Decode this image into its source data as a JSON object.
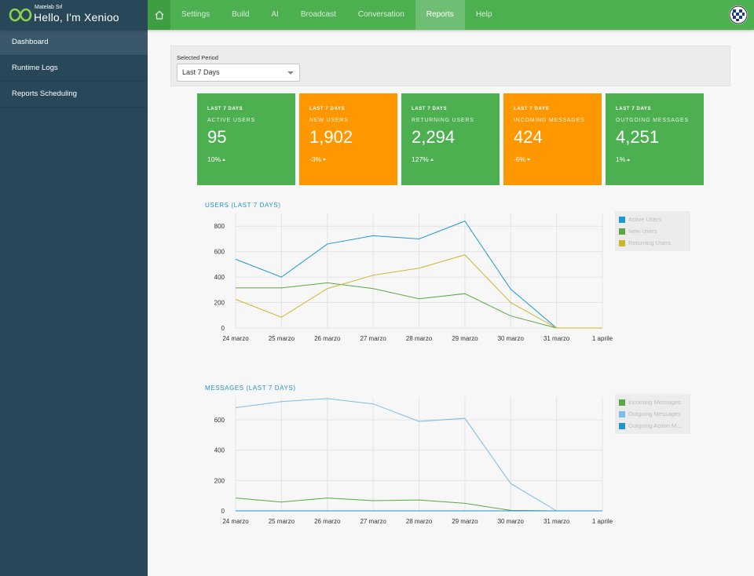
{
  "header": {
    "company": "Matelab Srl",
    "app_name": "Hello, I'm Xenioo",
    "nav": [
      {
        "label": "Settings",
        "active": false
      },
      {
        "label": "Build",
        "active": false
      },
      {
        "label": "AI",
        "active": false
      },
      {
        "label": "Broadcast",
        "active": false
      },
      {
        "label": "Conversation",
        "active": false
      },
      {
        "label": "Reports",
        "active": true
      },
      {
        "label": "Help",
        "active": false
      }
    ],
    "icons": {
      "home": "home-icon",
      "logo": "infinity-logo-icon",
      "avatar": "user-avatar"
    }
  },
  "sidebar": {
    "items": [
      {
        "label": "Dashboard",
        "active": true
      },
      {
        "label": "Runtime Logs",
        "active": false
      },
      {
        "label": "Reports Scheduling",
        "active": false
      }
    ]
  },
  "period": {
    "label": "Selected Period",
    "value": "Last 7 Days"
  },
  "kpis": [
    {
      "period": "LAST 7 DAYS",
      "label": "ACTIVE USERS",
      "value": "95",
      "delta": "10%",
      "trend": "up",
      "color": "#4caf50"
    },
    {
      "period": "LAST 7 DAYS",
      "label": "NEW USERS",
      "value": "1,902",
      "delta": "-3%",
      "trend": "down",
      "color": "#ff9800"
    },
    {
      "period": "LAST 7 DAYS",
      "label": "RETURNING USERS",
      "value": "2,294",
      "delta": "127%",
      "trend": "up",
      "color": "#4caf50"
    },
    {
      "period": "LAST 7 DAYS",
      "label": "INCOMING MESSAGES",
      "value": "424",
      "delta": "-5%",
      "trend": "down",
      "color": "#ff9800"
    },
    {
      "period": "LAST 7 DAYS",
      "label": "OUTGOING MESSAGES",
      "value": "4,251",
      "delta": "1%",
      "trend": "up",
      "color": "#4caf50"
    }
  ],
  "chart_data": [
    {
      "type": "line",
      "title": "USERS (LAST 7 DAYS)",
      "categories": [
        "24 marzo",
        "25 marzo",
        "26 marzo",
        "27 marzo",
        "28 marzo",
        "29 marzo",
        "30 marzo",
        "31 marzo",
        "1 aprile"
      ],
      "series": [
        {
          "name": "Active Users",
          "color": "#1e96d4",
          "values": [
            540,
            400,
            660,
            725,
            700,
            840,
            305,
            0,
            0
          ]
        },
        {
          "name": "New Users",
          "color": "#5ba846",
          "values": [
            315,
            315,
            355,
            310,
            230,
            270,
            95,
            0,
            0
          ]
        },
        {
          "name": "Returning Users",
          "color": "#cdb62c",
          "values": [
            225,
            85,
            310,
            415,
            470,
            575,
            200,
            0,
            0
          ]
        }
      ],
      "ylim": [
        0,
        900
      ],
      "yticks": [
        0,
        200,
        400,
        600,
        800
      ],
      "grid": true,
      "legend": "top-right"
    },
    {
      "type": "line",
      "title": "MESSAGES (LAST 7 DAYS)",
      "categories": [
        "24 marzo",
        "25 marzo",
        "26 marzo",
        "27 marzo",
        "28 marzo",
        "29 marzo",
        "30 marzo",
        "31 marzo",
        "1 aprile"
      ],
      "series": [
        {
          "name": "Incoming Messages",
          "color": "#5ba846",
          "values": [
            85,
            58,
            85,
            67,
            72,
            50,
            3,
            0,
            0
          ]
        },
        {
          "name": "Outgoing Messages",
          "color": "#7cbde3",
          "values": [
            680,
            720,
            740,
            705,
            590,
            610,
            180,
            0,
            0
          ]
        },
        {
          "name": "Outgoing Action M...",
          "color": "#1e96d4",
          "values": [
            0,
            0,
            0,
            0,
            0,
            0,
            0,
            0,
            0
          ]
        }
      ],
      "ylim": [
        0,
        750
      ],
      "yticks": [
        0,
        200,
        400,
        600
      ],
      "grid": true,
      "legend": "top-right"
    }
  ]
}
